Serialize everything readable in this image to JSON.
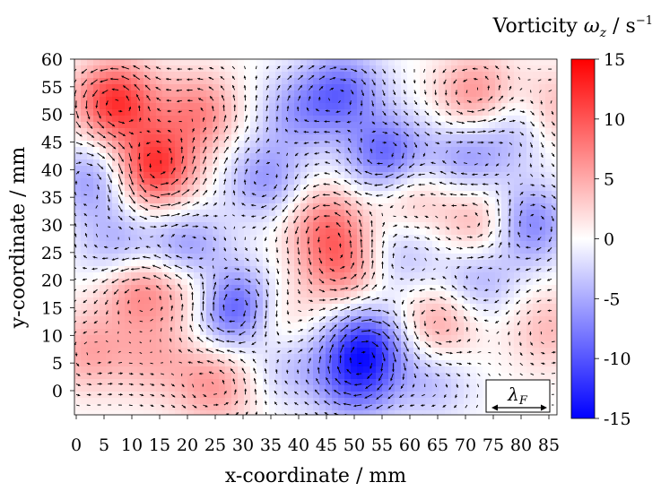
{
  "chart_data": {
    "type": "heatmap",
    "title": "",
    "xlabel": "x-coordinate / mm",
    "ylabel": "y-coordinate / mm",
    "xlim": [
      0,
      88
    ],
    "ylim": [
      -5,
      60
    ],
    "x_ticks": [
      0,
      5,
      10,
      15,
      20,
      25,
      30,
      35,
      40,
      45,
      50,
      55,
      60,
      65,
      70,
      75,
      80,
      85
    ],
    "y_ticks": [
      0,
      5,
      10,
      15,
      20,
      25,
      30,
      35,
      40,
      45,
      50,
      55,
      60
    ],
    "colorbar": {
      "label_text": "Vorticity",
      "label_symbol": "ω",
      "label_subscript": "z",
      "label_unit": " / s",
      "label_unit_exp": "−1",
      "range": [
        -15,
        15
      ],
      "ticks": [
        "15",
        "10",
        "5",
        "0",
        "-5",
        "-10",
        "-15"
      ],
      "colormap": [
        "#0000ff",
        "#ffffff",
        "#ff0000"
      ]
    },
    "scale_marker": {
      "symbol": "λ",
      "subscript": "F"
    },
    "vortices": [
      {
        "x": 7,
        "y": 52,
        "w": 12
      },
      {
        "x": 14,
        "y": 40,
        "w": 12
      },
      {
        "x": 22,
        "y": 50,
        "w": 7
      },
      {
        "x": 11,
        "y": 19,
        "w": 8
      },
      {
        "x": 22,
        "y": 18,
        "w": 6
      },
      {
        "x": 25,
        "y": 1,
        "w": 6
      },
      {
        "x": 2,
        "y": 7,
        "w": 5
      },
      {
        "x": 45,
        "y": 30,
        "w": 7
      },
      {
        "x": 48,
        "y": 22,
        "w": 7
      },
      {
        "x": 36,
        "y": 12,
        "w": 4
      },
      {
        "x": 65,
        "y": 12,
        "w": 6
      },
      {
        "x": 73,
        "y": 30,
        "w": 6
      },
      {
        "x": 72,
        "y": 53,
        "w": 7
      },
      {
        "x": 85,
        "y": 50,
        "w": 6
      },
      {
        "x": 60,
        "y": 36,
        "w": 5
      },
      {
        "x": 14,
        "y": 6,
        "w": 4
      },
      {
        "x": 85,
        "y": 11,
        "w": 4
      },
      {
        "x": 28,
        "y": 15,
        "w": -12
      },
      {
        "x": 52,
        "y": 8,
        "w": -11
      },
      {
        "x": 50,
        "y": 1,
        "w": -7
      },
      {
        "x": 56,
        "y": 42,
        "w": -10
      },
      {
        "x": 48,
        "y": 54,
        "w": -8
      },
      {
        "x": 40,
        "y": 50,
        "w": -5
      },
      {
        "x": 3,
        "y": 38,
        "w": -6
      },
      {
        "x": 20,
        "y": 25,
        "w": -7
      },
      {
        "x": 8,
        "y": 25,
        "w": -6
      },
      {
        "x": 34,
        "y": 38,
        "w": -6
      },
      {
        "x": 72,
        "y": 20,
        "w": -5
      },
      {
        "x": 81,
        "y": 30,
        "w": -8
      },
      {
        "x": 80,
        "y": 48,
        "w": -6
      },
      {
        "x": 70,
        "y": 42,
        "w": -6
      },
      {
        "x": 38,
        "y": 5,
        "w": -4
      },
      {
        "x": 64,
        "y": 2,
        "w": -4
      },
      {
        "x": 58,
        "y": 24,
        "w": -4
      }
    ]
  }
}
